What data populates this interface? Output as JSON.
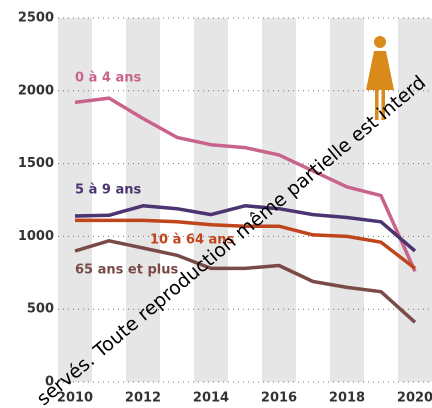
{
  "chart_data": {
    "type": "line",
    "x": [
      2010,
      2011,
      2012,
      2013,
      2014,
      2015,
      2016,
      2017,
      2018,
      2019,
      2020
    ],
    "series": [
      {
        "name": "0 à 4 ans",
        "color": "#c8648c",
        "values": [
          1920,
          1950,
          1810,
          1680,
          1630,
          1610,
          1560,
          1450,
          1340,
          1280,
          760
        ]
      },
      {
        "name": "5 à 9 ans",
        "color": "#4b3470",
        "values": [
          1140,
          1145,
          1210,
          1190,
          1150,
          1210,
          1190,
          1150,
          1130,
          1100,
          900
        ]
      },
      {
        "name": "10 à 64 ans",
        "color": "#c0441c",
        "values": [
          1110,
          1110,
          1110,
          1100,
          1080,
          1070,
          1070,
          1010,
          1000,
          960,
          780
        ]
      },
      {
        "name": "65 ans et plus",
        "color": "#7a4a48",
        "values": [
          900,
          970,
          920,
          870,
          780,
          780,
          800,
          690,
          650,
          620,
          410
        ]
      }
    ],
    "xlim": [
      2009.5,
      2020.5
    ],
    "xticks": [
      2010,
      2012,
      2014,
      2016,
      2018,
      2020
    ],
    "ylim": [
      0,
      2500
    ],
    "yticks": [
      0,
      500,
      1000,
      1500,
      2000,
      2500
    ],
    "grid": true,
    "watermark": "servés. Toute reproduction même partielle est interd"
  }
}
